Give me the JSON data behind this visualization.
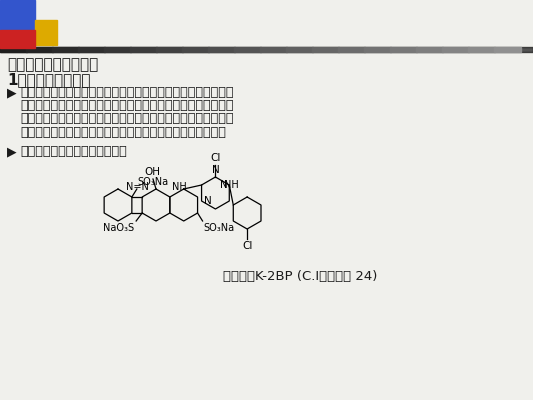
{
  "bg_color": "#f0f0ec",
  "header_blue": "#3355cc",
  "header_red": "#cc2222",
  "header_yellow": "#ddaa00",
  "header_dark": "#1a1a1a",
  "title": "活性染料的母体结构：",
  "subtitle": "1、偶氮类活性染料",
  "bullet1": [
    "偶氮活性染料多以单偶氮结构为主，尤其是红、黄、橙等浅色系",
    "列。近年来为改善这类染料的直接性，提高固色率，满足低盐或",
    "无盐染色要求，常通过增大母体结构及分子量，提高母体结构的",
    "共平面性，以及增加与纤维形成氢键的基团数等来达到目的。"
  ],
  "bullet2": "单偶氮结构为主：黄、橙、红色",
  "caption": "活性艳红K-2BP (C.I反应性红 24)",
  "text_color": "#1a1a1a"
}
